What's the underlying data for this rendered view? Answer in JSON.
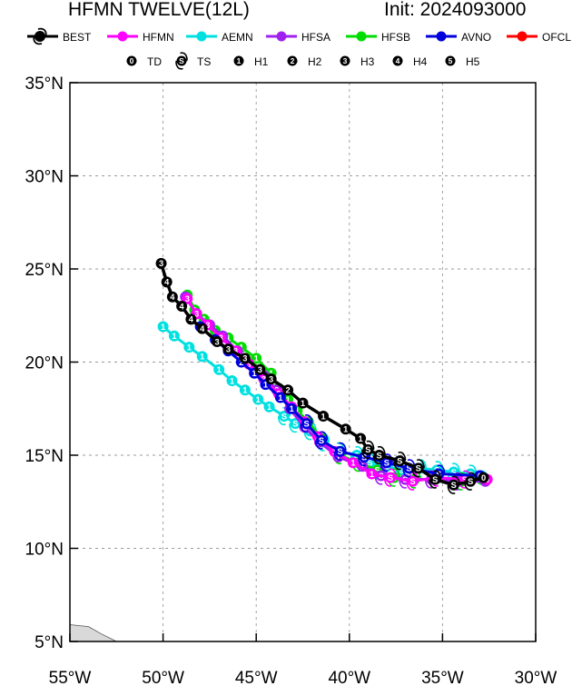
{
  "header": {
    "title": "HFMN TWELVE(12L)",
    "init": "Init: 2024093000"
  },
  "legend": {
    "models": [
      {
        "name": "BEST",
        "color": "#000000"
      },
      {
        "name": "HFMN",
        "color": "#ff00ff"
      },
      {
        "name": "AEMN",
        "color": "#00e0e0"
      },
      {
        "name": "HFSA",
        "color": "#a020f0"
      },
      {
        "name": "HFSB",
        "color": "#00dd00"
      },
      {
        "name": "AVNO",
        "color": "#0000dd"
      },
      {
        "name": "OFCL",
        "color": "#ff0000"
      }
    ],
    "intensity": [
      {
        "symbol": "0",
        "label": "TD"
      },
      {
        "symbol": "S",
        "label": "TS"
      },
      {
        "symbol": "1",
        "label": "H1"
      },
      {
        "symbol": "2",
        "label": "H2"
      },
      {
        "symbol": "3",
        "label": "H3"
      },
      {
        "symbol": "4",
        "label": "H4"
      },
      {
        "symbol": "5",
        "label": "H5"
      }
    ]
  },
  "chart_data": {
    "type": "line",
    "xlim": [
      -55,
      -30
    ],
    "ylim": [
      5,
      35
    ],
    "xticks": [
      -55,
      -50,
      -45,
      -40,
      -35,
      -30
    ],
    "xticklabels": [
      "55°W",
      "50°W",
      "45°W",
      "40°W",
      "35°W",
      "30°W"
    ],
    "yticks": [
      5,
      10,
      15,
      20,
      25,
      30,
      35
    ],
    "yticklabels": [
      "5°N",
      "10°N",
      "15°N",
      "20°N",
      "25°N",
      "30°N",
      "35°N"
    ],
    "grid": true,
    "land_color": "#d9d9d9",
    "land": [
      [
        -55,
        5.9
      ],
      [
        -54.0,
        5.8
      ],
      [
        -53.3,
        5.4
      ],
      [
        -52.5,
        5.0
      ],
      [
        -55,
        5.0
      ]
    ],
    "series": [
      {
        "name": "AEMN",
        "color": "#00e0e0",
        "lw": 3,
        "points": [
          [
            -32.9,
            13.9,
            "0"
          ],
          [
            -33.5,
            14.0,
            "S"
          ],
          [
            -34.4,
            14.1,
            "S"
          ],
          [
            -35.3,
            14.2,
            "S"
          ],
          [
            -36.2,
            14.3,
            "S"
          ],
          [
            -37.2,
            14.2,
            "S"
          ],
          [
            -38.0,
            14.4,
            "S"
          ],
          [
            -38.9,
            14.6,
            "S"
          ],
          [
            -39.6,
            15.0,
            "S"
          ],
          [
            -40.6,
            15.2,
            "S"
          ],
          [
            -41.4,
            15.7,
            "S"
          ],
          [
            -42.1,
            16.3,
            "S"
          ],
          [
            -42.9,
            16.7,
            "S"
          ],
          [
            -43.5,
            17.1,
            "S"
          ],
          [
            -44.3,
            17.6,
            "1"
          ],
          [
            -44.9,
            18.0,
            "1"
          ],
          [
            -45.6,
            18.5,
            "1"
          ],
          [
            -46.3,
            19.0,
            "1"
          ],
          [
            -47.0,
            19.6,
            "1"
          ],
          [
            -47.9,
            20.3,
            "1"
          ],
          [
            -48.6,
            20.8,
            "1"
          ],
          [
            -49.4,
            21.4,
            "1"
          ],
          [
            -50.0,
            21.9,
            "1"
          ]
        ]
      },
      {
        "name": "HFSB",
        "color": "#00dd00",
        "lw": 3,
        "points": [
          [
            -32.9,
            13.7,
            "0"
          ],
          [
            -34.0,
            13.6,
            "S"
          ],
          [
            -35.4,
            13.7,
            "S"
          ],
          [
            -36.5,
            13.7,
            "S"
          ],
          [
            -37.6,
            13.8,
            "S"
          ],
          [
            -38.5,
            14.2,
            "S"
          ],
          [
            -39.5,
            14.6,
            "S"
          ],
          [
            -40.5,
            15.0,
            "S"
          ],
          [
            -41.5,
            15.9,
            "1"
          ],
          [
            -42.2,
            16.8,
            "1"
          ],
          [
            -42.8,
            17.4,
            "1"
          ],
          [
            -43.3,
            18.0,
            "1"
          ],
          [
            -43.8,
            18.6,
            "1"
          ],
          [
            -44.2,
            19.4,
            "1"
          ],
          [
            -45.0,
            20.2,
            "1"
          ],
          [
            -45.8,
            20.8,
            "1"
          ],
          [
            -46.5,
            21.3,
            "1"
          ],
          [
            -47.2,
            21.7,
            "1"
          ],
          [
            -47.8,
            22.3,
            "1"
          ],
          [
            -48.3,
            22.8,
            "1"
          ],
          [
            -48.7,
            23.6,
            "1"
          ]
        ]
      },
      {
        "name": "HFSA",
        "color": "#a020f0",
        "lw": 3,
        "points": [
          [
            -32.7,
            13.6,
            "0"
          ],
          [
            -34.2,
            13.6,
            "S"
          ],
          [
            -35.6,
            13.7,
            "S"
          ],
          [
            -37.0,
            13.7,
            "S"
          ],
          [
            -38.3,
            13.9,
            "S"
          ],
          [
            -39.3,
            14.4,
            "1"
          ],
          [
            -40.6,
            14.9,
            "1"
          ],
          [
            -41.6,
            15.7,
            "2"
          ],
          [
            -42.4,
            16.5,
            "2"
          ],
          [
            -43.2,
            17.5,
            "2"
          ],
          [
            -43.9,
            18.5,
            "3"
          ],
          [
            -44.6,
            19.3,
            "3"
          ],
          [
            -45.4,
            19.9,
            "3"
          ],
          [
            -46.0,
            20.6,
            "3"
          ],
          [
            -46.8,
            21.4,
            "3"
          ],
          [
            -47.5,
            22.0,
            "3"
          ],
          [
            -48.2,
            22.6,
            "3"
          ],
          [
            -48.8,
            23.5,
            "3"
          ]
        ]
      },
      {
        "name": "HFMN",
        "color": "#ff00ff",
        "lw": 3,
        "points": [
          [
            -32.6,
            13.7,
            "0"
          ],
          [
            -33.8,
            13.7,
            "S"
          ],
          [
            -35.3,
            13.8,
            "S"
          ],
          [
            -36.6,
            13.6,
            "S"
          ],
          [
            -37.8,
            13.8,
            "S"
          ],
          [
            -38.8,
            14.0,
            "1"
          ],
          [
            -39.8,
            14.6,
            "1"
          ],
          [
            -40.8,
            15.2,
            "1"
          ],
          [
            -41.7,
            16.0,
            "2"
          ],
          [
            -42.4,
            16.8,
            "2"
          ],
          [
            -43.1,
            17.6,
            "2"
          ],
          [
            -43.8,
            18.3,
            "2"
          ],
          [
            -44.6,
            19.1,
            "3"
          ],
          [
            -45.4,
            19.9,
            "3"
          ],
          [
            -46.1,
            20.6,
            "3"
          ],
          [
            -46.9,
            21.3,
            "3"
          ],
          [
            -47.6,
            22.0,
            "3"
          ],
          [
            -48.2,
            22.6,
            "3"
          ],
          [
            -48.7,
            23.4,
            "3"
          ]
        ]
      },
      {
        "name": "AVNO",
        "color": "#0000dd",
        "lw": 3,
        "points": [
          [
            -33.0,
            13.9,
            "0"
          ],
          [
            -35.2,
            14.0,
            "S"
          ],
          [
            -36.8,
            14.3,
            "S"
          ],
          [
            -38.0,
            14.6,
            "S"
          ],
          [
            -39.2,
            14.9,
            "S"
          ],
          [
            -40.5,
            15.2,
            "S"
          ],
          [
            -41.5,
            15.8,
            "S"
          ],
          [
            -42.3,
            16.7,
            "S"
          ],
          [
            -43.1,
            17.5,
            "1"
          ],
          [
            -43.7,
            18.1,
            "1"
          ],
          [
            -44.5,
            18.8,
            "1"
          ],
          [
            -45.1,
            19.4,
            "1"
          ],
          [
            -45.8,
            20.0,
            "2"
          ],
          [
            -46.5,
            20.6,
            "2"
          ],
          [
            -47.2,
            21.2,
            "2"
          ],
          [
            -48.0,
            21.9,
            "2"
          ]
        ]
      },
      {
        "name": "BEST",
        "color": "#000000",
        "lw": 3.5,
        "points": [
          [
            -32.8,
            13.8,
            "0"
          ],
          [
            -33.5,
            13.6,
            "S"
          ],
          [
            -34.4,
            13.4,
            "S"
          ],
          [
            -35.4,
            13.7,
            "S"
          ],
          [
            -36.3,
            14.3,
            "S"
          ],
          [
            -37.3,
            14.7,
            "S"
          ],
          [
            -38.4,
            15.0,
            "S"
          ],
          [
            -39.0,
            15.3,
            "S"
          ],
          [
            -39.4,
            15.9,
            "1"
          ],
          [
            -40.2,
            16.4,
            "1"
          ],
          [
            -41.4,
            17.1,
            "1"
          ],
          [
            -42.5,
            17.8,
            "1"
          ],
          [
            -43.3,
            18.5,
            "2"
          ],
          [
            -44.2,
            19.1,
            "3"
          ],
          [
            -44.8,
            19.6,
            "3"
          ],
          [
            -45.6,
            20.2,
            "3"
          ],
          [
            -46.5,
            20.7,
            "3"
          ],
          [
            -47.1,
            21.1,
            "3"
          ],
          [
            -47.9,
            21.8,
            "4"
          ],
          [
            -48.5,
            22.3,
            "4"
          ],
          [
            -49.0,
            23.0,
            "4"
          ],
          [
            -49.5,
            23.5,
            "4"
          ],
          [
            -49.8,
            24.3,
            "4"
          ],
          [
            -50.1,
            25.3,
            "3"
          ]
        ]
      }
    ]
  }
}
